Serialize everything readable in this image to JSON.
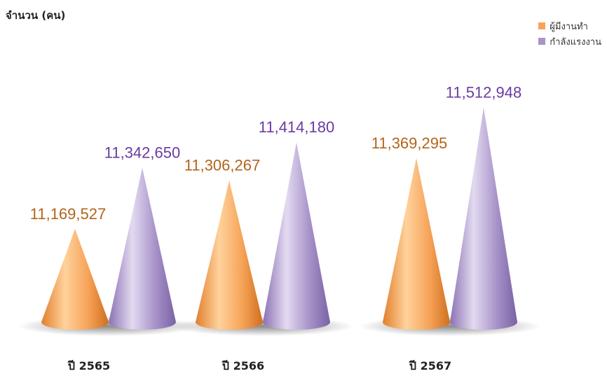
{
  "chart_data": {
    "type": "bar",
    "shape": "cone",
    "y_unit_label": "จำนวน (คน)",
    "categories": [
      "ปี 2565",
      "ปี 2566",
      "ปี 2567"
    ],
    "series": [
      {
        "name": "ผู้มีงานทำ",
        "values": [
          11169527,
          11306267,
          11369295
        ],
        "labels": [
          "11,169,527",
          "11,306,267",
          "11,369,295"
        ],
        "color": "#f5a45a",
        "label_color": "#b3641b"
      },
      {
        "name": "กำลังแรงงาน",
        "values": [
          11342650,
          11414180,
          11512948
        ],
        "labels": [
          "11,342,650",
          "11,414,180",
          "11,512,948"
        ],
        "color": "#a894c9",
        "label_color": "#6b3aa3"
      }
    ],
    "legend_position": "top-right",
    "grid": false
  }
}
